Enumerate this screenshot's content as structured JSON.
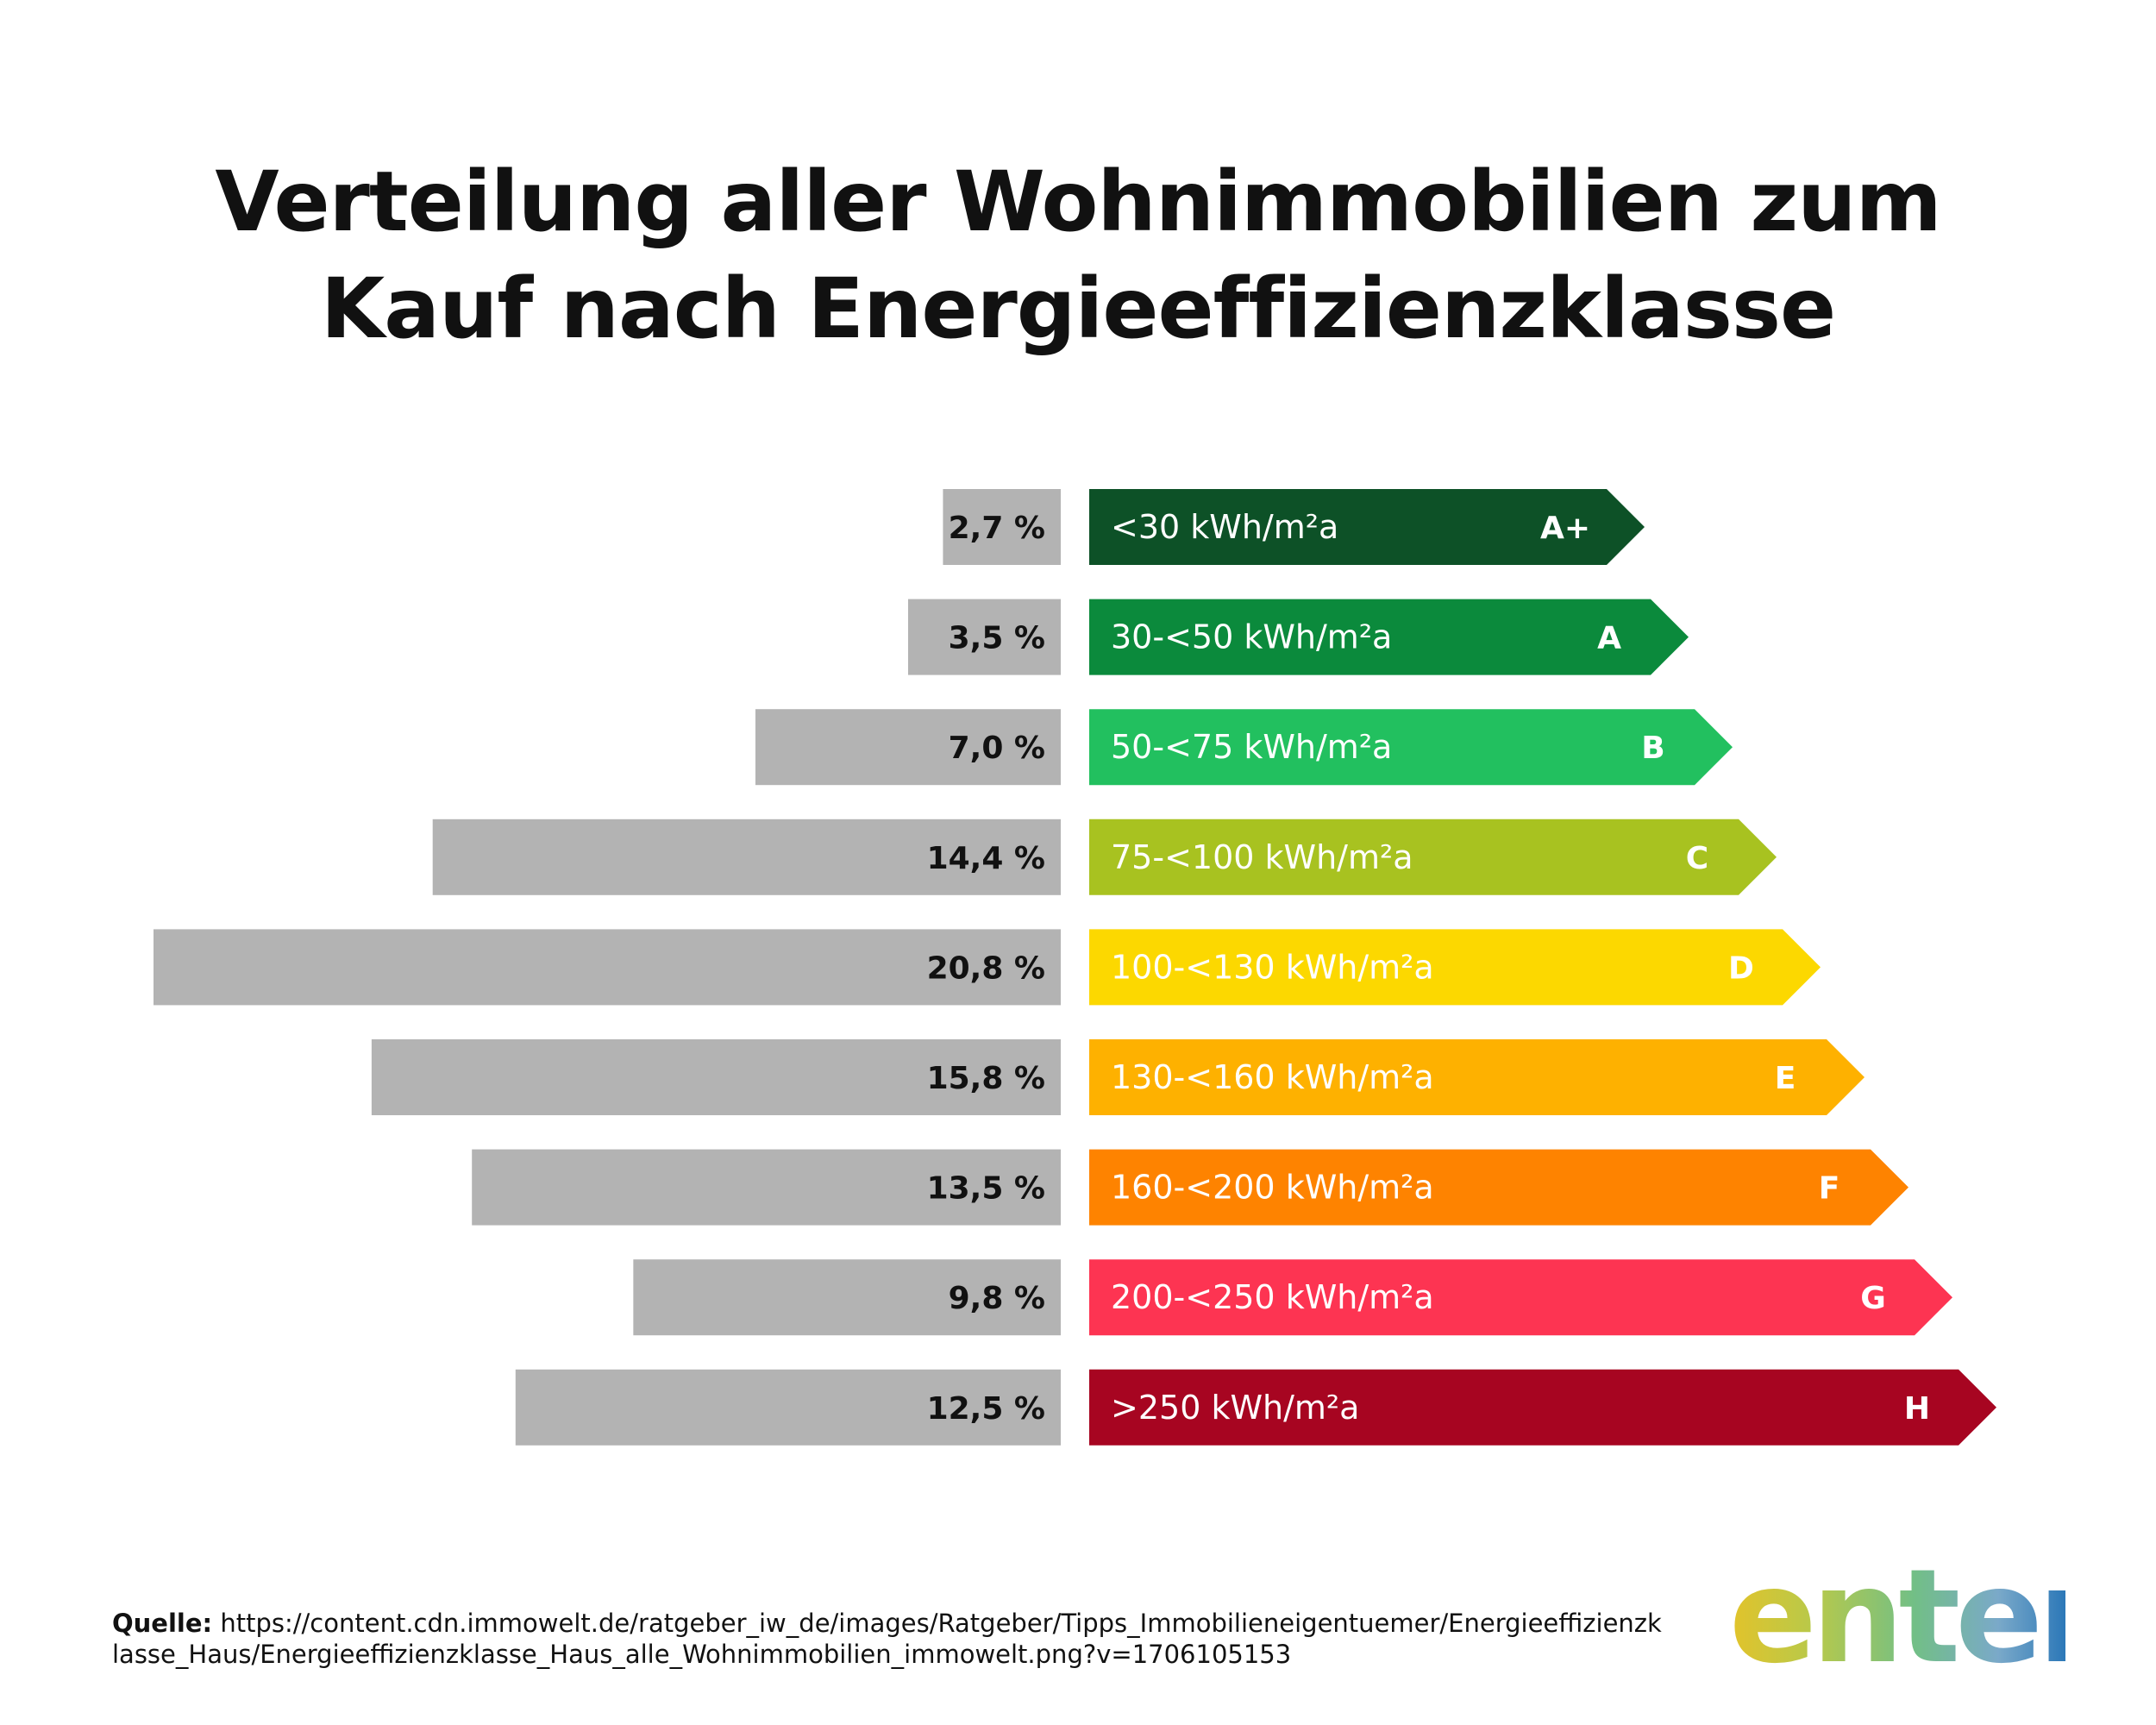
{
  "title": {
    "line1": "Verteilung aller Wohnimmobilien zum",
    "line2": "Kauf nach Energieeffizienzklasse"
  },
  "chart_data": {
    "type": "bar",
    "orientation": "horizontal",
    "title": "Verteilung aller Wohnimmobilien zum Kauf nach Energieeffizienzklasse",
    "unit": "%",
    "categories": [
      "A+",
      "A",
      "B",
      "C",
      "D",
      "E",
      "F",
      "G",
      "H"
    ],
    "values": [
      2.7,
      3.5,
      7.0,
      14.4,
      20.8,
      15.8,
      13.5,
      9.8,
      12.5
    ],
    "value_labels": [
      "2,7 %",
      "3,5 %",
      "7,0 %",
      "14,4 %",
      "20,8 %",
      "15,8 %",
      "13,5 %",
      "9,8 %",
      "12,5 %"
    ],
    "ranges": [
      "<30 kWh/m²a",
      "30-<50 kWh/m²a",
      "50-<75 kWh/m²a",
      "75-<100 kWh/m²a",
      "100-<130 kWh/m²a",
      "130-<160 kWh/m²a",
      "160-<200 kWh/m²a",
      "200-<250 kWh/m²a",
      ">250 kWh/m²a"
    ],
    "colors": [
      "#0d5127",
      "#0b8a3c",
      "#22c05f",
      "#a8c220",
      "#fcd800",
      "#feb100",
      "#fe8300",
      "#fd3452",
      "#a70521"
    ],
    "bar_color": "#b3b3b3",
    "xlim": [
      0,
      20.8
    ]
  },
  "source": {
    "label": "Quelle:",
    "url": "https://content.cdn.immowelt.de/ratgeber_iw_de/images/Ratgeber/Tipps_Immobilieneigentuemer/Energieeffizienzklasse_Haus/Energieeffizienzklasse_Haus_alle_Wohnimmobilien_immowelt.png?v=1706105153"
  },
  "logo": {
    "text": "enter"
  }
}
